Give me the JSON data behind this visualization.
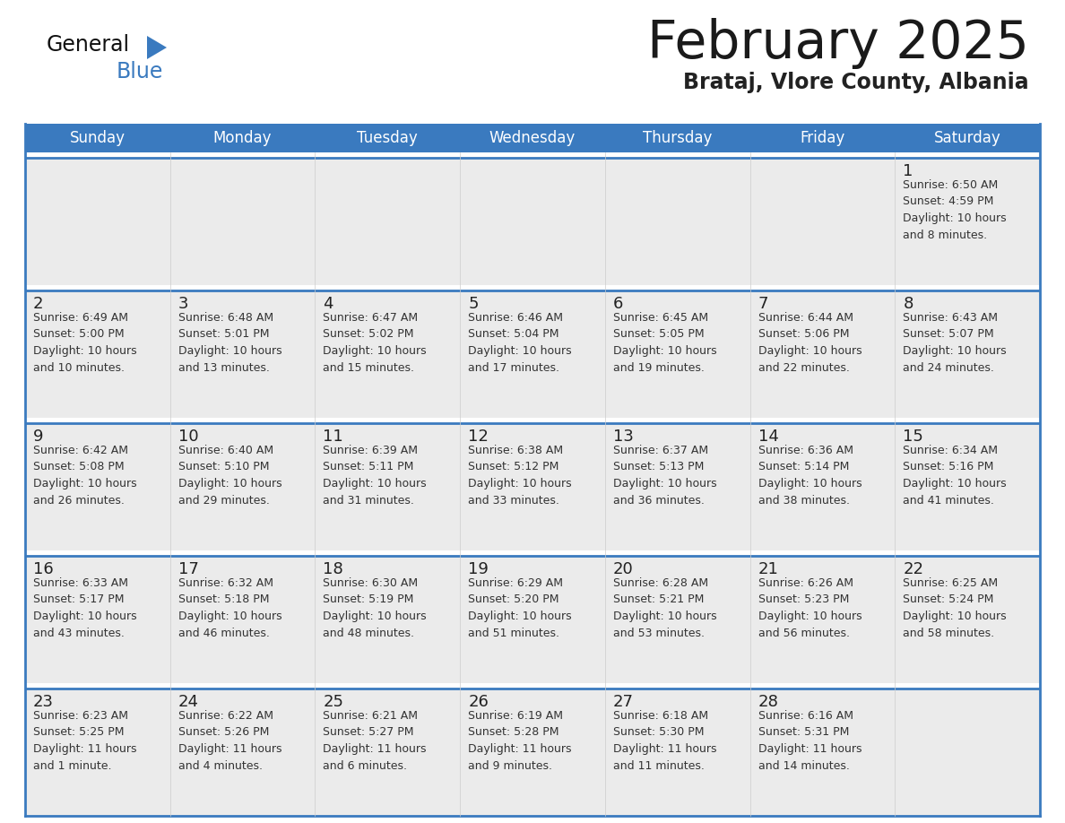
{
  "title": "February 2025",
  "subtitle": "Brataj, Vlore County, Albania",
  "header_bg": "#3a7abf",
  "header_text": "#ffffff",
  "day_names": [
    "Sunday",
    "Monday",
    "Tuesday",
    "Wednesday",
    "Thursday",
    "Friday",
    "Saturday"
  ],
  "cell_bg": "#ebebeb",
  "row_gap_bg": "#ffffff",
  "separator_color": "#3a7abf",
  "date_color": "#222222",
  "info_color": "#333333",
  "title_color": "#1a1a1a",
  "subtitle_color": "#222222",
  "logo_general_color": "#111111",
  "logo_blue_color": "#3a7abf",
  "fig_bg": "#ffffff",
  "weeks": [
    {
      "days": [
        {
          "date": "",
          "info": ""
        },
        {
          "date": "",
          "info": ""
        },
        {
          "date": "",
          "info": ""
        },
        {
          "date": "",
          "info": ""
        },
        {
          "date": "",
          "info": ""
        },
        {
          "date": "",
          "info": ""
        },
        {
          "date": "1",
          "info": "Sunrise: 6:50 AM\nSunset: 4:59 PM\nDaylight: 10 hours\nand 8 minutes."
        }
      ]
    },
    {
      "days": [
        {
          "date": "2",
          "info": "Sunrise: 6:49 AM\nSunset: 5:00 PM\nDaylight: 10 hours\nand 10 minutes."
        },
        {
          "date": "3",
          "info": "Sunrise: 6:48 AM\nSunset: 5:01 PM\nDaylight: 10 hours\nand 13 minutes."
        },
        {
          "date": "4",
          "info": "Sunrise: 6:47 AM\nSunset: 5:02 PM\nDaylight: 10 hours\nand 15 minutes."
        },
        {
          "date": "5",
          "info": "Sunrise: 6:46 AM\nSunset: 5:04 PM\nDaylight: 10 hours\nand 17 minutes."
        },
        {
          "date": "6",
          "info": "Sunrise: 6:45 AM\nSunset: 5:05 PM\nDaylight: 10 hours\nand 19 minutes."
        },
        {
          "date": "7",
          "info": "Sunrise: 6:44 AM\nSunset: 5:06 PM\nDaylight: 10 hours\nand 22 minutes."
        },
        {
          "date": "8",
          "info": "Sunrise: 6:43 AM\nSunset: 5:07 PM\nDaylight: 10 hours\nand 24 minutes."
        }
      ]
    },
    {
      "days": [
        {
          "date": "9",
          "info": "Sunrise: 6:42 AM\nSunset: 5:08 PM\nDaylight: 10 hours\nand 26 minutes."
        },
        {
          "date": "10",
          "info": "Sunrise: 6:40 AM\nSunset: 5:10 PM\nDaylight: 10 hours\nand 29 minutes."
        },
        {
          "date": "11",
          "info": "Sunrise: 6:39 AM\nSunset: 5:11 PM\nDaylight: 10 hours\nand 31 minutes."
        },
        {
          "date": "12",
          "info": "Sunrise: 6:38 AM\nSunset: 5:12 PM\nDaylight: 10 hours\nand 33 minutes."
        },
        {
          "date": "13",
          "info": "Sunrise: 6:37 AM\nSunset: 5:13 PM\nDaylight: 10 hours\nand 36 minutes."
        },
        {
          "date": "14",
          "info": "Sunrise: 6:36 AM\nSunset: 5:14 PM\nDaylight: 10 hours\nand 38 minutes."
        },
        {
          "date": "15",
          "info": "Sunrise: 6:34 AM\nSunset: 5:16 PM\nDaylight: 10 hours\nand 41 minutes."
        }
      ]
    },
    {
      "days": [
        {
          "date": "16",
          "info": "Sunrise: 6:33 AM\nSunset: 5:17 PM\nDaylight: 10 hours\nand 43 minutes."
        },
        {
          "date": "17",
          "info": "Sunrise: 6:32 AM\nSunset: 5:18 PM\nDaylight: 10 hours\nand 46 minutes."
        },
        {
          "date": "18",
          "info": "Sunrise: 6:30 AM\nSunset: 5:19 PM\nDaylight: 10 hours\nand 48 minutes."
        },
        {
          "date": "19",
          "info": "Sunrise: 6:29 AM\nSunset: 5:20 PM\nDaylight: 10 hours\nand 51 minutes."
        },
        {
          "date": "20",
          "info": "Sunrise: 6:28 AM\nSunset: 5:21 PM\nDaylight: 10 hours\nand 53 minutes."
        },
        {
          "date": "21",
          "info": "Sunrise: 6:26 AM\nSunset: 5:23 PM\nDaylight: 10 hours\nand 56 minutes."
        },
        {
          "date": "22",
          "info": "Sunrise: 6:25 AM\nSunset: 5:24 PM\nDaylight: 10 hours\nand 58 minutes."
        }
      ]
    },
    {
      "days": [
        {
          "date": "23",
          "info": "Sunrise: 6:23 AM\nSunset: 5:25 PM\nDaylight: 11 hours\nand 1 minute."
        },
        {
          "date": "24",
          "info": "Sunrise: 6:22 AM\nSunset: 5:26 PM\nDaylight: 11 hours\nand 4 minutes."
        },
        {
          "date": "25",
          "info": "Sunrise: 6:21 AM\nSunset: 5:27 PM\nDaylight: 11 hours\nand 6 minutes."
        },
        {
          "date": "26",
          "info": "Sunrise: 6:19 AM\nSunset: 5:28 PM\nDaylight: 11 hours\nand 9 minutes."
        },
        {
          "date": "27",
          "info": "Sunrise: 6:18 AM\nSunset: 5:30 PM\nDaylight: 11 hours\nand 11 minutes."
        },
        {
          "date": "28",
          "info": "Sunrise: 6:16 AM\nSunset: 5:31 PM\nDaylight: 11 hours\nand 14 minutes."
        },
        {
          "date": "",
          "info": ""
        }
      ]
    }
  ]
}
